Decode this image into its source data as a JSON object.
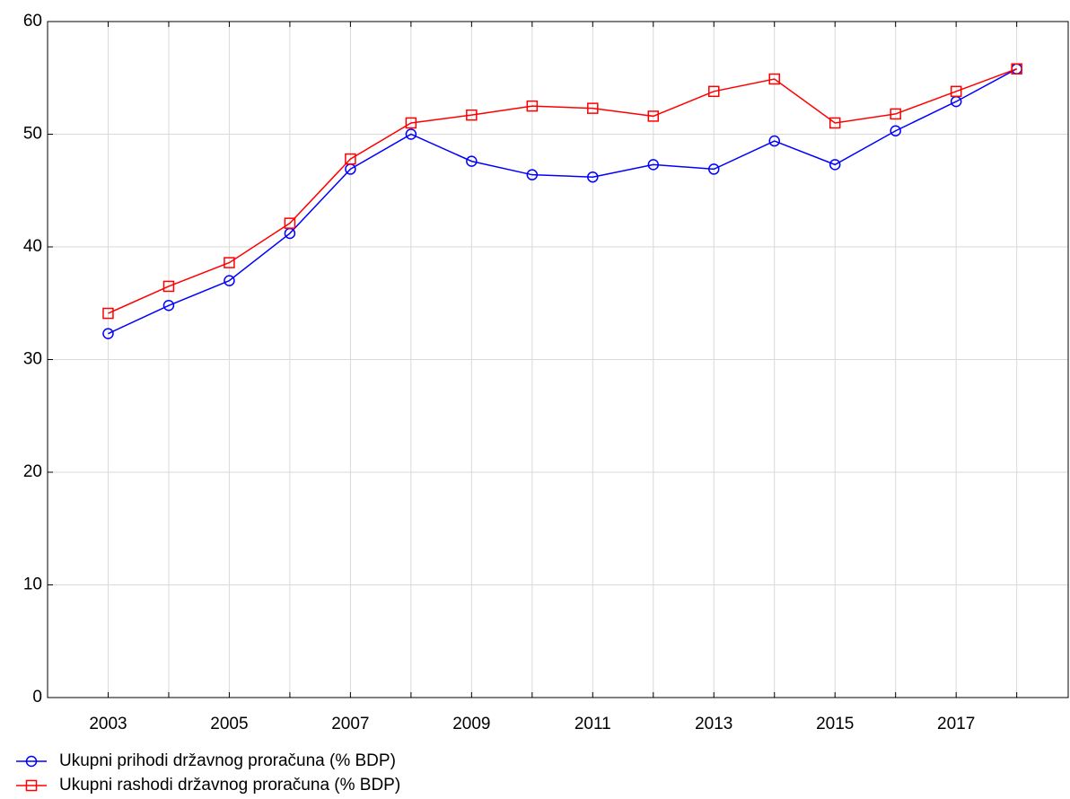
{
  "chart_data": {
    "type": "line",
    "x": [
      2003,
      2004,
      2005,
      2006,
      2007,
      2008,
      2009,
      2010,
      2011,
      2012,
      2013,
      2014,
      2015,
      2016,
      2017,
      2018
    ],
    "series": [
      {
        "name": "Ukupni prihodi državnog proračuna (% BDP)",
        "color": "#0000ff",
        "marker": "circle",
        "values": [
          32.3,
          34.8,
          37.0,
          41.2,
          46.9,
          50.0,
          47.6,
          46.4,
          46.2,
          47.3,
          46.9,
          49.4,
          47.3,
          50.3,
          52.9,
          55.8
        ]
      },
      {
        "name": "Ukupni rashodi državnog proračuna (% BDP)",
        "color": "#ff0000",
        "marker": "square",
        "values": [
          34.1,
          36.5,
          38.6,
          42.1,
          47.8,
          51.0,
          51.7,
          52.5,
          52.3,
          51.6,
          53.8,
          54.9,
          51.0,
          51.8,
          53.8,
          55.8
        ]
      }
    ],
    "xlim": [
      2002,
      2018.85
    ],
    "xticks": [
      2003,
      2005,
      2007,
      2009,
      2011,
      2013,
      2015,
      2017
    ],
    "ylim": [
      0,
      60
    ],
    "yticks": [
      0,
      10,
      20,
      30,
      40,
      50,
      60
    ],
    "grid": true,
    "legend": "bottom-left"
  }
}
